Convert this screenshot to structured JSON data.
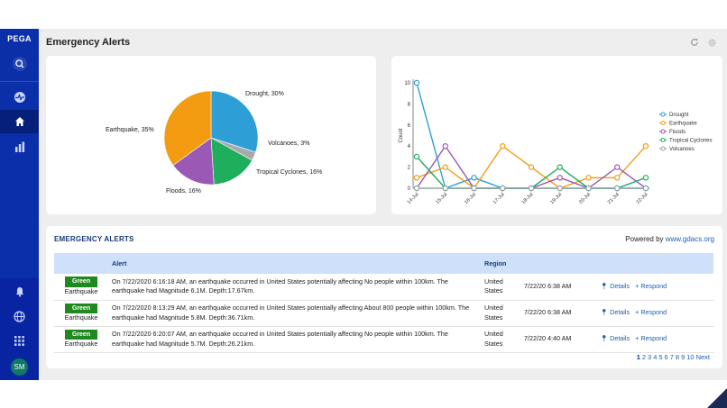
{
  "sidebar": {
    "brand": "PEGA",
    "user_initials": "SM"
  },
  "header": {
    "title": "Emergency Alerts"
  },
  "chart_data": [
    {
      "type": "pie",
      "labels": [
        "Drought, 30%",
        "Volcanoes, 3%",
        "Tropical Cyclones, 16%",
        "Floods, 16%",
        "Earthquake, 35%"
      ],
      "categories": [
        "Drought",
        "Volcanoes",
        "Tropical Cyclones",
        "Floods",
        "Earthquake"
      ],
      "values": [
        30,
        3,
        16,
        16,
        35
      ],
      "colors": [
        "#2e9fd6",
        "#a9a9a9",
        "#1fae5c",
        "#9b59b6",
        "#f39c12"
      ]
    },
    {
      "type": "line",
      "ylabel": "Count",
      "x": [
        "14-Jul",
        "15-Jul",
        "16-Jul",
        "17-Jul",
        "18-Jul",
        "19-Jul",
        "20-Jul",
        "21-Jul",
        "22-Jul"
      ],
      "ylim": [
        0,
        10
      ],
      "yticks": [
        0,
        2,
        4,
        6,
        8,
        10
      ],
      "legend_position": "right",
      "series": [
        {
          "name": "Drought",
          "color": "#2e9fd6",
          "values": [
            10,
            0,
            1,
            0,
            0,
            0,
            0,
            0,
            0
          ]
        },
        {
          "name": "Earthquake",
          "color": "#f39c12",
          "values": [
            1,
            2,
            0,
            4,
            2,
            0,
            1,
            1,
            4
          ]
        },
        {
          "name": "Floods",
          "color": "#9b59b6",
          "values": [
            0,
            4,
            0,
            0,
            0,
            1,
            0,
            2,
            0
          ]
        },
        {
          "name": "Tropical Cyclones",
          "color": "#1fae5c",
          "values": [
            3,
            0,
            0,
            0,
            0,
            2,
            0,
            0,
            1
          ]
        },
        {
          "name": "Volcanoes",
          "color": "#95a5a6",
          "values": [
            0,
            0,
            0,
            0,
            0,
            0,
            0,
            0,
            0
          ]
        }
      ]
    }
  ],
  "alerts": {
    "title": "EMERGENCY ALERTS",
    "powered_prefix": "Powered by ",
    "powered_link": "www.gdacs.org",
    "columns": {
      "type": "",
      "alert": "Alert",
      "region": "Region"
    },
    "rows": [
      {
        "badge": "Green",
        "type": "Earthquake",
        "alert": "On 7/22/2020 6:16:18 AM, an earthquake occurred in United States potentially affecting No people within 100km. The earthquake had Magnitude 6.1M. Depth:17.67km.",
        "region": "United States",
        "time": "7/22/20 6:38 AM",
        "details": "Details",
        "respond": "Respond"
      },
      {
        "badge": "Green",
        "type": "Earthquake",
        "alert": "On 7/22/2020 8:13:29 AM, an earthquake occurred in United States potentially affecting About 800 people within 100km. The earthquake had Magnitude 5.8M. Depth:36.71km.",
        "region": "United States",
        "time": "7/22/20 6:38 AM",
        "details": "Details",
        "respond": "Respond"
      },
      {
        "badge": "Green",
        "type": "Earthquake",
        "alert": "On 7/22/2020 6:20:07 AM, an earthquake occurred in United States potentially affecting No people within 100km. The earthquake had Magnitude 5.7M. Depth:26.21km.",
        "region": "United States",
        "time": "7/22/20 4:40 AM",
        "details": "Details",
        "respond": "Respond"
      }
    ],
    "pager": {
      "pages": [
        "1",
        "2",
        "3",
        "4",
        "5",
        "6",
        "7",
        "8",
        "9",
        "10"
      ],
      "current": "1",
      "next": "Next"
    }
  }
}
